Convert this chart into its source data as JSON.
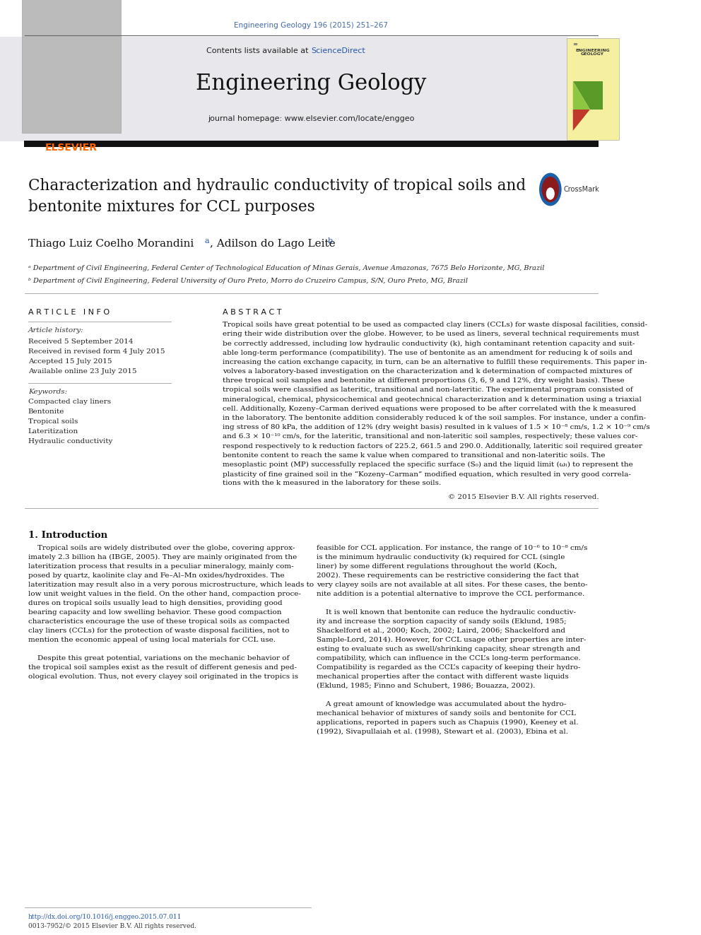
{
  "page_width": 9.92,
  "page_height": 13.23,
  "bg_color": "#ffffff",
  "journal_ref": "Engineering Geology 196 (2015) 251–267",
  "journal_ref_color": "#4169aa",
  "header_text": "Engineering Geology",
  "contents_text": "Contents lists available at ",
  "sciencedirect_text": "ScienceDirect",
  "sciencedirect_color": "#2255aa",
  "journal_homepage": "journal homepage: www.elsevier.com/locate/enggeo",
  "elsevier_color": "#ff6600",
  "authors": "Thiago Luiz Coelho Morandini",
  "authors2": ", Adilson do Lago Leite",
  "affil_a": "ᵃ Department of Civil Engineering, Federal Center of Technological Education of Minas Gerais, Avenue Amazonas, 7675 Belo Horizonte, MG, Brazil",
  "affil_b": "ᵇ Department of Civil Engineering, Federal University of Ouro Preto, Morro do Cruzeiro Campus, S/N, Ouro Preto, MG, Brazil",
  "article_info_header": "A R T I C L E   I N F O",
  "abstract_header": "A B S T R A C T",
  "article_history_label": "Article history:",
  "received": "Received 5 September 2014",
  "revised": "Received in revised form 4 July 2015",
  "accepted": "Accepted 15 July 2015",
  "available": "Available online 23 July 2015",
  "keywords_label": "Keywords:",
  "keywords": [
    "Compacted clay liners",
    "Bentonite",
    "Tropical soils",
    "Lateritization",
    "Hydraulic conductivity"
  ],
  "copyright": "© 2015 Elsevier B.V. All rights reserved.",
  "intro_header": "1. Introduction",
  "footer_doi": "http://dx.doi.org/10.1016/j.enggeo.2015.07.011",
  "footer_issn": "0013-7952/© 2015 Elsevier B.V. All rights reserved.",
  "doi_color": "#2255aa",
  "abstract_lines": [
    "Tropical soils have great potential to be used as compacted clay liners (CCLs) for waste disposal facilities, consid-",
    "ering their wide distribution over the globe. However, to be used as liners, several technical requirements must",
    "be correctly addressed, including low hydraulic conductivity (k), high contaminant retention capacity and suit-",
    "able long-term performance (compatibility). The use of bentonite as an amendment for reducing k of soils and",
    "increasing the cation exchange capacity, in turn, can be an alternative to fulfill these requirements. This paper in-",
    "volves a laboratory-based investigation on the characterization and k determination of compacted mixtures of",
    "three tropical soil samples and bentonite at different proportions (3, 6, 9 and 12%, dry weight basis). These",
    "tropical soils were classified as lateritic, transitional and non-lateritic. The experimental program consisted of",
    "mineralogical, chemical, physicochemical and geotechnical characterization and k determination using a triaxial",
    "cell. Additionally, Kozeny–Carman derived equations were proposed to be after correlated with the k measured",
    "in the laboratory. The bentonite addition considerably reduced k of the soil samples. For instance, under a confin-",
    "ing stress of 80 kPa, the addition of 12% (dry weight basis) resulted in k values of 1.5 × 10⁻⁸ cm/s, 1.2 × 10⁻⁹ cm/s",
    "and 6.3 × 10⁻¹⁰ cm/s, for the lateritic, transitional and non-lateritic soil samples, respectively; these values cor-",
    "respond respectively to k reduction factors of 225.2, 661.5 and 290.0. Additionally, lateritic soil required greater",
    "bentonite content to reach the same k value when compared to transitional and non-lateritic soils. The",
    "mesoplastic point (MP) successfully replaced the specific surface (S₀) and the liquid limit (ωₗ) to represent the",
    "plasticity of fine grained soil in the “Kozeny–Carman” modified equation, which resulted in very good correla-",
    "tions with the k measured in the laboratory for these soils."
  ],
  "intro_col1_lines": [
    "    Tropical soils are widely distributed over the globe, covering approx-",
    "imately 2.3 billion ha (IBGE, 2005). They are mainly originated from the",
    "lateritization process that results in a peculiar mineralogy, mainly com-",
    "posed by quartz, kaolinite clay and Fe–Al–Mn oxides/hydroxides. The",
    "lateritization may result also in a very porous microstructure, which leads to",
    "low unit weight values in the field. On the other hand, compaction proce-",
    "dures on tropical soils usually lead to high densities, providing good",
    "bearing capacity and low swelling behavior. These good compaction",
    "characteristics encourage the use of these tropical soils as compacted",
    "clay liners (CCLs) for the protection of waste disposal facilities, not to",
    "mention the economic appeal of using local materials for CCL use.",
    "",
    "    Despite this great potential, variations on the mechanic behavior of",
    "the tropical soil samples exist as the result of different genesis and ped-",
    "ological evolution. Thus, not every clayey soil originated in the tropics is"
  ],
  "intro_col2_lines": [
    "feasible for CCL application. For instance, the range of 10⁻⁶ to 10⁻⁸ cm/s",
    "is the minimum hydraulic conductivity (k) required for CCL (single",
    "liner) by some different regulations throughout the world (Koch,",
    "2002). These requirements can be restrictive considering the fact that",
    "very clayey soils are not available at all sites. For these cases, the bento-",
    "nite addition is a potential alternative to improve the CCL performance.",
    "",
    "    It is well known that bentonite can reduce the hydraulic conductiv-",
    "ity and increase the sorption capacity of sandy soils (Eklund, 1985;",
    "Shackelford et al., 2000; Koch, 2002; Laird, 2006; Shackelford and",
    "Sample-Lord, 2014). However, for CCL usage other properties are inter-",
    "esting to evaluate such as swell/shrinking capacity, shear strength and",
    "compatibility, which can influence in the CCL’s long-term performance.",
    "Compatibility is regarded as the CCL’s capacity of keeping their hydro-",
    "mechanical properties after the contact with different waste liquids",
    "(Eklund, 1985; Finno and Schubert, 1986; Bouazza, 2002).",
    "",
    "    A great amount of knowledge was accumulated about the hydro-",
    "mechanical behavior of mixtures of sandy soils and bentonite for CCL",
    "applications, reported in papers such as Chapuis (1990), Keeney et al.",
    "(1992), Sivapullaiah et al. (1998), Stewart et al. (2003), Ebina et al."
  ]
}
